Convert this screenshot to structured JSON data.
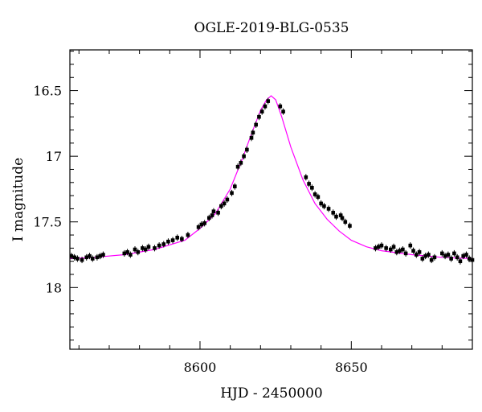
{
  "chart_data": {
    "type": "scatter",
    "title": "OGLE-2019-BLG-0535",
    "xlabel": "HJD - 2450000",
    "ylabel": "I magnitude",
    "xlim": [
      8557,
      8690
    ],
    "ylim": [
      18.47,
      16.19
    ],
    "y_inverted": true,
    "x_ticks": [
      8600,
      8650
    ],
    "x_tick_labels": [
      "8600",
      "8650"
    ],
    "y_ticks": [
      16.5,
      17,
      17.5,
      18
    ],
    "y_tick_labels": [
      "16.5",
      "17",
      "17.5",
      "18"
    ],
    "grid": false,
    "model": {
      "name": "",
      "color": "#ff00ff",
      "x": [
        8557,
        8565,
        8575,
        8585,
        8595,
        8600,
        8605,
        8610,
        8614,
        8617,
        8620,
        8622,
        8623.5,
        8625,
        8627,
        8630,
        8634,
        8638,
        8642,
        8646,
        8650,
        8655,
        8660,
        8670,
        8680,
        8690
      ],
      "y": [
        17.78,
        17.77,
        17.75,
        17.71,
        17.64,
        17.55,
        17.44,
        17.25,
        17.02,
        16.83,
        16.65,
        16.57,
        16.54,
        16.57,
        16.7,
        16.93,
        17.18,
        17.36,
        17.48,
        17.57,
        17.64,
        17.69,
        17.72,
        17.75,
        17.77,
        17.78
      ]
    },
    "series": [
      {
        "name": "",
        "color": "#000000",
        "x": [
          8557.5,
          8558.5,
          8559.5,
          8561,
          8562.5,
          8563.5,
          8564.5,
          8566,
          8567,
          8568,
          8575,
          8576,
          8577,
          8578.5,
          8579.5,
          8581,
          8582,
          8583,
          8585,
          8586.5,
          8588,
          8589.5,
          8591,
          8592.5,
          8594,
          8596,
          8599.5,
          8600.5,
          8601.5,
          8603,
          8604,
          8604.5,
          8606,
          8607,
          8608,
          8609,
          8610.5,
          8611.5,
          8612.5,
          8613.5,
          8614.5,
          8615.5,
          8617,
          8617.5,
          8618.5,
          8619.5,
          8620.5,
          8621.5,
          8622.5,
          8626.5,
          8627.5,
          8635,
          8636,
          8637,
          8638,
          8639,
          8640,
          8641,
          8642.5,
          8644,
          8645,
          8646.5,
          8647,
          8648,
          8649.5,
          8658,
          8659,
          8660,
          8661.5,
          8663,
          8664,
          8665,
          8666,
          8667,
          8668,
          8669.5,
          8670.5,
          8671.5,
          8672.5,
          8673.5,
          8674.5,
          8675.5,
          8676.5,
          8677.5,
          8680,
          8681,
          8682,
          8683,
          8684,
          8685,
          8686,
          8687,
          8688,
          8689,
          8690
        ],
        "y": [
          17.76,
          17.77,
          17.78,
          17.79,
          17.77,
          17.76,
          17.78,
          17.77,
          17.76,
          17.75,
          17.74,
          17.73,
          17.75,
          17.71,
          17.73,
          17.7,
          17.71,
          17.69,
          17.7,
          17.68,
          17.67,
          17.65,
          17.64,
          17.62,
          17.63,
          17.6,
          17.54,
          17.52,
          17.51,
          17.47,
          17.45,
          17.42,
          17.43,
          17.38,
          17.36,
          17.33,
          17.28,
          17.23,
          17.08,
          17.05,
          17.0,
          16.95,
          16.86,
          16.82,
          16.76,
          16.7,
          16.66,
          16.62,
          16.58,
          16.62,
          16.66,
          17.16,
          17.21,
          17.24,
          17.29,
          17.31,
          17.36,
          17.38,
          17.4,
          17.43,
          17.46,
          17.45,
          17.47,
          17.5,
          17.53,
          17.7,
          17.69,
          17.68,
          17.7,
          17.71,
          17.69,
          17.73,
          17.72,
          17.71,
          17.74,
          17.68,
          17.72,
          17.75,
          17.73,
          17.78,
          17.76,
          17.75,
          17.79,
          17.77,
          17.74,
          17.76,
          17.75,
          17.78,
          17.74,
          17.77,
          17.8,
          17.76,
          17.75,
          17.78,
          17.79
        ]
      }
    ]
  }
}
